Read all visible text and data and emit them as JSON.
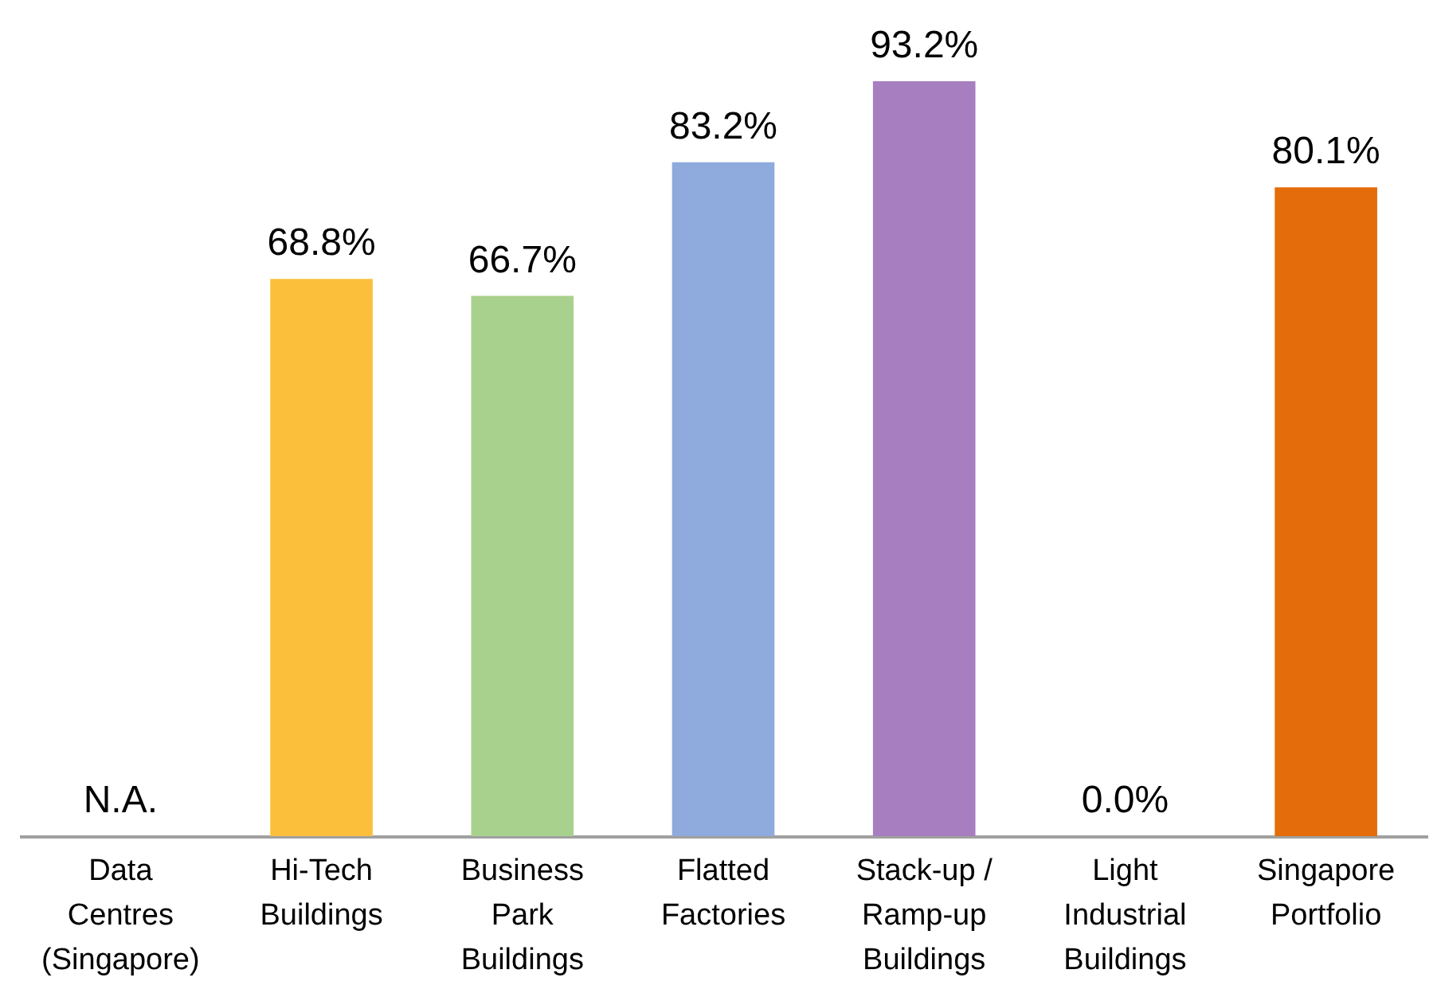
{
  "chart_data": {
    "type": "bar",
    "categories": [
      "Data Centres (Singapore)",
      "Hi-Tech Buildings",
      "Business Park Buildings",
      "Flatted Factories",
      "Stack-up / Ramp-up Buildings",
      "Light Industrial Buildings",
      "Singapore Portfolio"
    ],
    "values": [
      null,
      68.8,
      66.7,
      83.2,
      93.2,
      0.0,
      80.1
    ],
    "colors": [
      "#f4b942",
      "#fbbf3c",
      "#a9d18e",
      "#8faadc",
      "#a77fc0",
      "#a5a5a5",
      "#e46c0a"
    ],
    "value_labels": [
      "N.A.",
      "68.8%",
      "66.7%",
      "83.2%",
      "93.2%",
      "0.0%",
      "80.1%"
    ]
  }
}
